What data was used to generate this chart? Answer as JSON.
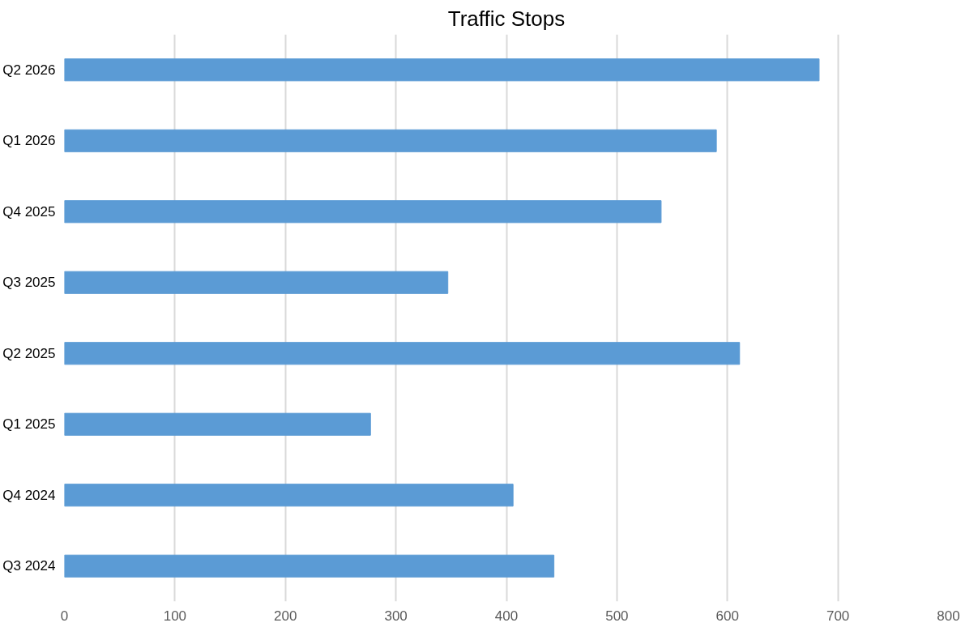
{
  "chart_data": {
    "type": "bar",
    "orientation": "horizontal",
    "title": "Traffic Stops",
    "categories": [
      "Q2 2026",
      "Q1 2026",
      "Q4 2025",
      "Q3 2025",
      "Q2 2025",
      "Q1 2025",
      "Q4 2024",
      "Q3 2024"
    ],
    "values": [
      683,
      590,
      540,
      347,
      611,
      277,
      406,
      443
    ],
    "color": "#5b9bd5",
    "xlim": [
      0,
      800
    ],
    "xticks": [
      0,
      100,
      200,
      300,
      400,
      500,
      600,
      700,
      800
    ],
    "grid": "x"
  }
}
